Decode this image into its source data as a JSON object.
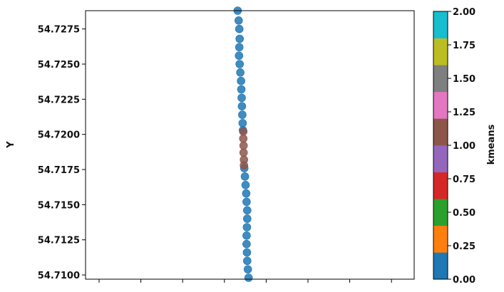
{
  "chart_data": {
    "type": "scatter",
    "title": "",
    "xlabel": "",
    "ylabel": "Y",
    "ylim": [
      54.7097,
      54.7288
    ],
    "yticks": [
      {
        "value": 54.71,
        "label": "54.7100"
      },
      {
        "value": 54.7125,
        "label": "54.7125"
      },
      {
        "value": 54.715,
        "label": "54.7150"
      },
      {
        "value": 54.7175,
        "label": "54.7175"
      },
      {
        "value": 54.72,
        "label": "54.7200"
      },
      {
        "value": 54.7225,
        "label": "54.7225"
      },
      {
        "value": 54.725,
        "label": "54.7250"
      },
      {
        "value": 54.7275,
        "label": "54.7275"
      }
    ],
    "x_tick_count": 8,
    "x_tick_labels": [],
    "grid": false,
    "series": [
      {
        "color": "#1f77b4",
        "cluster": 0,
        "points": [
          [
            0.463,
            54.7288
          ],
          [
            0.466,
            54.7281
          ],
          [
            0.468,
            54.7275
          ],
          [
            0.469,
            54.7268
          ],
          [
            0.468,
            54.7262
          ],
          [
            0.467,
            54.7256
          ],
          [
            0.469,
            54.725
          ],
          [
            0.471,
            54.7244
          ],
          [
            0.473,
            54.7238
          ],
          [
            0.474,
            54.7232
          ],
          [
            0.475,
            54.7226
          ],
          [
            0.476,
            54.722
          ],
          [
            0.477,
            54.7214
          ],
          [
            0.478,
            54.7208
          ],
          [
            0.479,
            54.7203
          ],
          [
            0.483,
            54.7176
          ],
          [
            0.485,
            54.717
          ],
          [
            0.487,
            54.7164
          ],
          [
            0.489,
            54.7158
          ],
          [
            0.49,
            54.7152
          ],
          [
            0.492,
            54.7146
          ],
          [
            0.492,
            54.714
          ],
          [
            0.491,
            54.7134
          ],
          [
            0.49,
            54.7128
          ],
          [
            0.49,
            54.7122
          ],
          [
            0.491,
            54.7116
          ],
          [
            0.492,
            54.711
          ],
          [
            0.494,
            54.7104
          ],
          [
            0.496,
            54.7098
          ]
        ]
      },
      {
        "color": "#8c564b",
        "cluster": 1,
        "points": [
          [
            0.48,
            54.7202
          ],
          [
            0.48,
            54.7197
          ],
          [
            0.481,
            54.7192
          ],
          [
            0.481,
            54.7187
          ],
          [
            0.482,
            54.7182
          ],
          [
            0.482,
            54.7178
          ]
        ]
      }
    ],
    "colorbar": {
      "label": "kmeans",
      "range": [
        0,
        2
      ],
      "ticks": [
        {
          "value": 0,
          "label": "0.00"
        },
        {
          "value": 0.25,
          "label": "0.25"
        },
        {
          "value": 0.5,
          "label": "0.50"
        },
        {
          "value": 0.75,
          "label": "0.75"
        },
        {
          "value": 1,
          "label": "1.00"
        },
        {
          "value": 1.25,
          "label": "1.25"
        },
        {
          "value": 1.5,
          "label": "1.50"
        },
        {
          "value": 1.75,
          "label": "1.75"
        },
        {
          "value": 2,
          "label": "2.00"
        }
      ],
      "colors": [
        "#1f77b4",
        "#ff7f0e",
        "#2ca02c",
        "#d62728",
        "#9467bd",
        "#8c564b",
        "#e377c2",
        "#7f7f7f",
        "#bcbd22",
        "#17becf"
      ]
    }
  }
}
